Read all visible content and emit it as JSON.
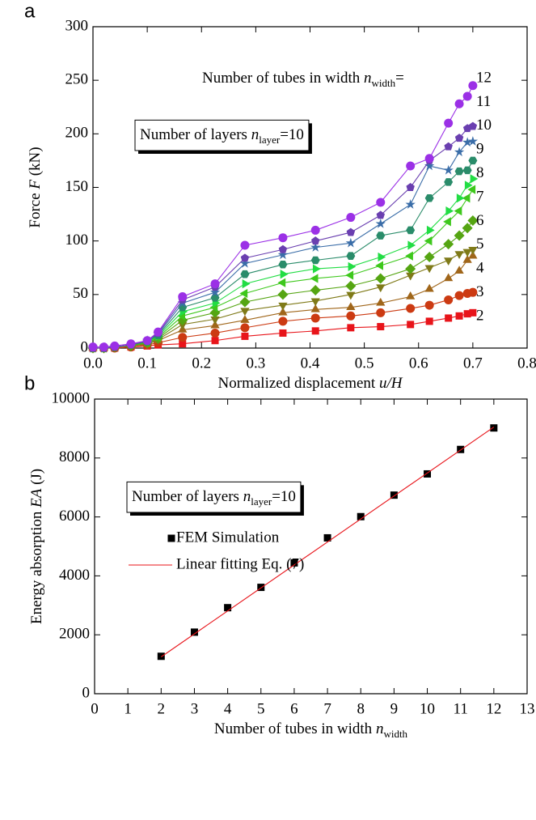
{
  "chart_data": [
    {
      "type": "line",
      "panel_label": "a",
      "xlabel": [
        {
          "text": "Normalized displacement "
        },
        {
          "text": "u/H",
          "style": "italic"
        }
      ],
      "ylabel": [
        {
          "text": "Force "
        },
        {
          "text": "F",
          "style": "italic"
        },
        {
          "text": " (kN)"
        }
      ],
      "xlim": [
        0,
        0.8
      ],
      "ylim": [
        0,
        300
      ],
      "xticks": [
        {
          "value": 0,
          "label": "0.0"
        },
        0.1,
        0.2,
        0.3,
        0.4,
        0.5,
        0.6,
        0.7,
        0.8
      ],
      "yticks": [
        0,
        50,
        100,
        150,
        200,
        250,
        300
      ],
      "legend": "end-labels",
      "annotations": [
        {
          "parts": [
            {
              "text": "Number of tubes in width "
            },
            {
              "text": "n",
              "style": "italic"
            },
            {
              "text": "width",
              "style": "sub"
            },
            {
              "text": "="
            }
          ],
          "box": false
        },
        {
          "parts": [
            {
              "text": "Number of layers "
            },
            {
              "text": "n",
              "style": "italic"
            },
            {
              "text": "layer",
              "style": "sub"
            },
            {
              "text": "=10"
            }
          ],
          "box": true
        }
      ],
      "x": [
        0,
        0.02,
        0.04,
        0.07,
        0.1,
        0.12,
        0.165,
        0.225,
        0.28,
        0.35,
        0.41,
        0.475,
        0.53,
        0.585,
        0.62,
        0.655,
        0.675,
        0.69,
        0.7
      ],
      "series": [
        {
          "name": "2",
          "color": "#e8141a",
          "marker": "square",
          "values": [
            0,
            0,
            0,
            1,
            2,
            3,
            4,
            7,
            11,
            14,
            16,
            19,
            20,
            22,
            25,
            28,
            30,
            32,
            33
          ]
        },
        {
          "name": "3",
          "color": "#cc3a12",
          "marker": "circle",
          "values": [
            0,
            0,
            0,
            1,
            3,
            5,
            10,
            14,
            19,
            25,
            28,
            30,
            33,
            37,
            40,
            45,
            49,
            51,
            52
          ]
        },
        {
          "name": "4",
          "color": "#a0661a",
          "marker": "triangle-up",
          "values": [
            0,
            0,
            1,
            2,
            4,
            7,
            17,
            21,
            26,
            33,
            36,
            38,
            42,
            48,
            55,
            65,
            72,
            82,
            86
          ]
        },
        {
          "name": "5",
          "color": "#7f7a18",
          "marker": "triangle-down",
          "values": [
            0,
            0,
            1,
            2,
            4,
            8,
            22,
            27,
            35,
            40,
            44,
            50,
            57,
            68,
            75,
            82,
            88,
            90,
            92
          ]
        },
        {
          "name": "6",
          "color": "#55a512",
          "marker": "diamond",
          "values": [
            0,
            0,
            1,
            2,
            5,
            9,
            26,
            33,
            43,
            50,
            54,
            58,
            65,
            74,
            85,
            97,
            105,
            112,
            119
          ]
        },
        {
          "name": "7",
          "color": "#3ec81c",
          "marker": "triangle-left",
          "values": [
            0,
            0,
            1,
            3,
            5,
            10,
            30,
            38,
            51,
            61,
            65,
            68,
            77,
            86,
            100,
            118,
            128,
            140,
            148
          ]
        },
        {
          "name": "8",
          "color": "#22dd44",
          "marker": "triangle-right",
          "values": [
            0,
            0,
            1,
            3,
            6,
            11,
            34,
            42,
            60,
            69,
            74,
            76,
            85,
            96,
            110,
            128,
            140,
            152,
            158
          ]
        },
        {
          "name": "9",
          "color": "#2a8c6a",
          "marker": "hexagon",
          "values": [
            0,
            0,
            1,
            3,
            6,
            12,
            38,
            47,
            69,
            78,
            82,
            86,
            105,
            110,
            140,
            155,
            165,
            166,
            175
          ]
        },
        {
          "name": "10",
          "color": "#3a6da8",
          "marker": "star",
          "values": [
            0,
            0,
            1,
            3,
            7,
            13,
            42,
            52,
            79,
            87,
            94,
            98,
            116,
            134,
            170,
            166,
            183,
            192,
            193
          ]
        },
        {
          "name": "11",
          "color": "#6a3fb0",
          "marker": "pentagon",
          "values": [
            0,
            0,
            1,
            3,
            7,
            14,
            45,
            57,
            84,
            92,
            100,
            108,
            124,
            150,
            175,
            188,
            196,
            205,
            207
          ]
        },
        {
          "name": "12",
          "color": "#9b30e6",
          "marker": "sphere",
          "values": [
            1,
            1,
            2,
            4,
            7,
            15,
            48,
            60,
            96,
            103,
            110,
            122,
            136,
            170,
            177,
            210,
            228,
            235,
            245
          ]
        }
      ]
    },
    {
      "type": "scatter",
      "panel_label": "b",
      "xlabel": [
        {
          "text": "Number of tubes in width "
        },
        {
          "text": "n",
          "style": "italic"
        },
        {
          "text": "width",
          "style": "sub"
        }
      ],
      "ylabel": [
        {
          "text": "Energy absorption "
        },
        {
          "text": "EA",
          "style": "italic"
        },
        {
          "text": " (J)"
        }
      ],
      "xlim": [
        0,
        13
      ],
      "ylim": [
        0,
        10000
      ],
      "xticks": [
        0,
        1,
        2,
        3,
        4,
        5,
        6,
        7,
        8,
        9,
        10,
        11,
        12,
        13
      ],
      "yticks": [
        0,
        2000,
        4000,
        6000,
        8000,
        10000
      ],
      "legend": "upper left",
      "annotations": [
        {
          "parts": [
            {
              "text": "Number of layers "
            },
            {
              "text": "n",
              "style": "italic"
            },
            {
              "text": "layer",
              "style": "sub"
            },
            {
              "text": "=10"
            }
          ],
          "box": true
        }
      ],
      "series": [
        {
          "name": "FEM Simulation",
          "color": "#000000",
          "style": "marker",
          "marker": "square",
          "x": [
            2,
            3,
            4,
            5,
            6,
            7,
            8,
            9,
            10,
            11,
            12
          ],
          "values": [
            1270,
            2090,
            2920,
            3610,
            4440,
            5290,
            6010,
            6740,
            7460,
            8290,
            9020
          ]
        },
        {
          "name": "Linear fitting Eq. (7)",
          "color": "#e8141a",
          "style": "line",
          "x": [
            2,
            12
          ],
          "values": [
            1250,
            9050
          ]
        }
      ]
    }
  ]
}
